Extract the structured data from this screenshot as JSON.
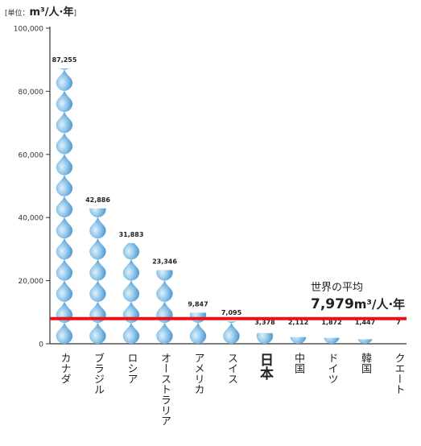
{
  "unit_prefix": "[単位：",
  "unit_value": "m³/人·年",
  "unit_suffix": "]",
  "world_average": {
    "title": "世界の平均",
    "value_text": "7,979",
    "unit_text": "m³/人·年"
  },
  "chart_data": {
    "type": "bar",
    "title": "",
    "xlabel": "",
    "ylabel": "",
    "ylim": [
      0,
      100000
    ],
    "yticks": [
      0,
      20000,
      40000,
      60000,
      80000,
      100000
    ],
    "ytick_labels": [
      "0",
      "20,000",
      "40,000",
      "60,000",
      "80,000",
      "100,000"
    ],
    "grid": false,
    "categories": [
      "カナダ",
      "ブラジル",
      "ロシア",
      "オーストラリア",
      "アメリカ",
      "スイス",
      "日本",
      "中国",
      "ドイツ",
      "韓国",
      "クエート"
    ],
    "values": [
      87255,
      42886,
      31883,
      23346,
      9847,
      7095,
      3378,
      2112,
      1872,
      1447,
      7
    ],
    "value_labels": [
      "87,255",
      "42,886",
      "31,883",
      "23,346",
      "9,847",
      "7,095",
      "3,378",
      "2,112",
      "1,872",
      "1,447",
      "7"
    ],
    "highlight_category": "日本",
    "reference_line": {
      "value": 7979,
      "color": "#e8141c"
    },
    "colors": {
      "drop_light": "#dff0fb",
      "drop_mid": "#8fc6ea",
      "drop_dark": "#3a86c4",
      "axis": "#333333"
    }
  }
}
